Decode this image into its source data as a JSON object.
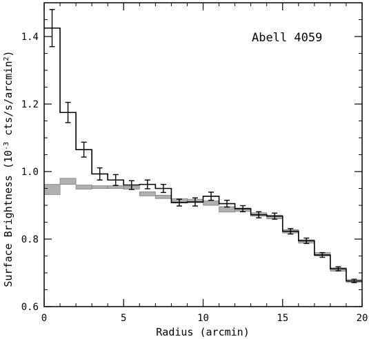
{
  "chart_data": {
    "type": "line",
    "title": "",
    "annotation": "Abell 4059",
    "xlabel": "Radius (arcmin)",
    "ylabel_main": "Surface Brightness (10",
    "ylabel_exp": "-3",
    "ylabel_mid": " cts/s/arcmin",
    "ylabel_exp2": "2",
    "ylabel_end": ")",
    "xlim": [
      0,
      20
    ],
    "ylim": [
      0.6,
      1.5
    ],
    "x_ticks": [
      0,
      5,
      10,
      15,
      20
    ],
    "x_tick_labels": [
      "0",
      "5",
      "10",
      "15",
      "20"
    ],
    "y_ticks": [
      0.6,
      0.8,
      1.0,
      1.2,
      1.4
    ],
    "y_tick_labels": [
      "0.6",
      "0.8",
      "1.0",
      "1.2",
      "1.4"
    ],
    "grid": false,
    "colors": {
      "data": "#000000",
      "model_fill": "#b0b0b0",
      "model_edge": "#808080"
    },
    "bin_edges": [
      0,
      1,
      2,
      3,
      4,
      5,
      6,
      7,
      8,
      9,
      10,
      11,
      12,
      13,
      14,
      15,
      16,
      17,
      18,
      19,
      20
    ],
    "bin_centers": [
      0.5,
      1.5,
      2.5,
      3.5,
      4.5,
      5.5,
      6.5,
      7.5,
      8.5,
      9.5,
      10.5,
      11.5,
      12.5,
      13.5,
      14.5,
      15.5,
      16.5,
      17.5,
      18.5,
      19.5
    ],
    "series": [
      {
        "values": [
          1.425,
          1.175,
          1.065,
          0.993,
          0.975,
          0.96,
          0.962,
          0.95,
          0.908,
          0.91,
          0.927,
          0.905,
          0.89,
          0.872,
          0.868,
          0.823,
          0.795,
          0.753,
          0.712,
          0.676
        ],
        "errors": [
          0.055,
          0.03,
          0.022,
          0.018,
          0.016,
          0.013,
          0.013,
          0.012,
          0.01,
          0.012,
          0.012,
          0.01,
          0.009,
          0.009,
          0.009,
          0.008,
          0.008,
          0.007,
          0.006,
          0.005
        ]
      },
      {
        "lower": [
          0.932,
          0.962,
          0.948,
          0.95,
          0.95,
          0.948,
          0.928,
          0.92,
          0.91,
          0.908,
          0.9,
          0.88,
          0.882,
          0.868,
          0.86,
          0.818,
          0.788,
          0.75,
          0.705,
          0.672
        ],
        "upper": [
          0.962,
          0.98,
          0.96,
          0.958,
          0.958,
          0.956,
          0.94,
          0.93,
          0.92,
          0.918,
          0.913,
          0.896,
          0.892,
          0.878,
          0.871,
          0.828,
          0.798,
          0.76,
          0.715,
          0.68
        ]
      }
    ]
  }
}
